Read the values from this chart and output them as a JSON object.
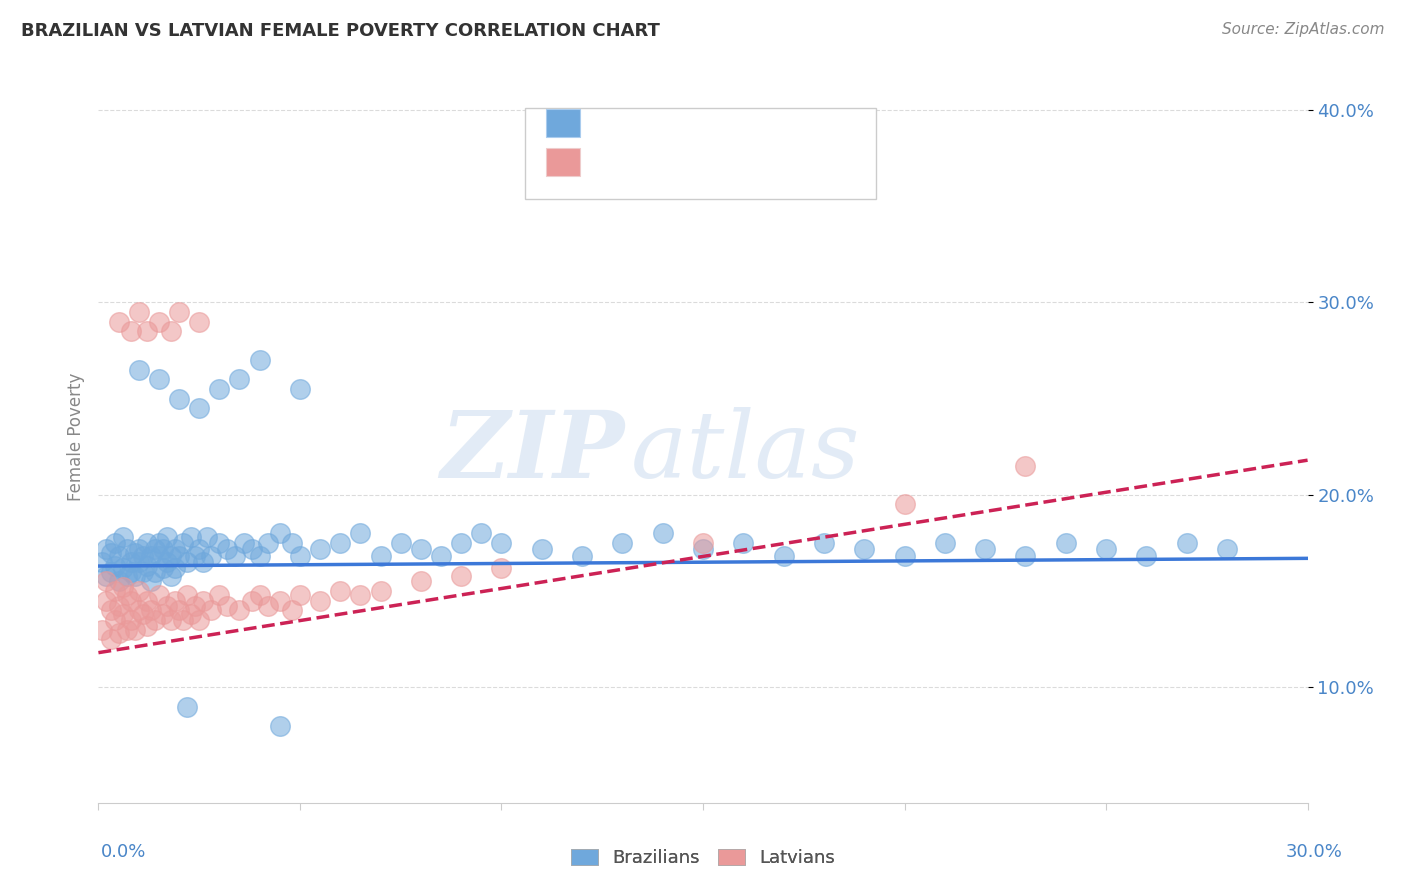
{
  "title": "BRAZILIAN VS LATVIAN FEMALE POVERTY CORRELATION CHART",
  "source": "Source: ZipAtlas.com",
  "ylabel": "Female Poverty",
  "xlim": [
    0.0,
    0.3
  ],
  "ylim": [
    0.04,
    0.42
  ],
  "yticks": [
    0.1,
    0.2,
    0.3,
    0.4
  ],
  "ytick_labels": [
    "10.0%",
    "20.0%",
    "30.0%",
    "40.0%"
  ],
  "xtick_positions": [
    0.0,
    0.05,
    0.1,
    0.15,
    0.2,
    0.25,
    0.3
  ],
  "blue_color": "#6fa8dc",
  "pink_color": "#ea9999",
  "blue_line_color": "#3c78d8",
  "pink_line_color": "#cc2255",
  "blue_line_style": "-",
  "pink_line_style": "--",
  "brazilian_x": [
    0.001,
    0.002,
    0.002,
    0.003,
    0.003,
    0.004,
    0.004,
    0.005,
    0.005,
    0.006,
    0.006,
    0.007,
    0.007,
    0.008,
    0.008,
    0.009,
    0.009,
    0.01,
    0.01,
    0.011,
    0.011,
    0.012,
    0.012,
    0.013,
    0.013,
    0.014,
    0.014,
    0.015,
    0.015,
    0.016,
    0.016,
    0.017,
    0.017,
    0.018,
    0.018,
    0.019,
    0.019,
    0.02,
    0.021,
    0.022,
    0.023,
    0.024,
    0.025,
    0.026,
    0.027,
    0.028,
    0.03,
    0.032,
    0.034,
    0.036,
    0.038,
    0.04,
    0.042,
    0.045,
    0.048,
    0.05,
    0.055,
    0.06,
    0.065,
    0.07,
    0.075,
    0.08,
    0.085,
    0.09,
    0.095,
    0.1,
    0.11,
    0.12,
    0.13,
    0.14,
    0.15,
    0.16,
    0.17,
    0.18,
    0.19,
    0.2,
    0.21,
    0.22,
    0.23,
    0.24,
    0.25,
    0.26,
    0.27,
    0.28,
    0.03,
    0.04,
    0.05,
    0.035,
    0.025,
    0.015,
    0.01,
    0.02,
    0.045,
    0.022
  ],
  "brazilian_y": [
    0.165,
    0.158,
    0.172,
    0.16,
    0.17,
    0.175,
    0.163,
    0.155,
    0.168,
    0.162,
    0.178,
    0.158,
    0.172,
    0.16,
    0.165,
    0.17,
    0.158,
    0.165,
    0.172,
    0.168,
    0.16,
    0.175,
    0.163,
    0.168,
    0.155,
    0.172,
    0.16,
    0.168,
    0.175,
    0.162,
    0.172,
    0.165,
    0.178,
    0.168,
    0.158,
    0.172,
    0.162,
    0.168,
    0.175,
    0.165,
    0.178,
    0.168,
    0.172,
    0.165,
    0.178,
    0.168,
    0.175,
    0.172,
    0.168,
    0.175,
    0.172,
    0.168,
    0.175,
    0.18,
    0.175,
    0.168,
    0.172,
    0.175,
    0.18,
    0.168,
    0.175,
    0.172,
    0.168,
    0.175,
    0.18,
    0.175,
    0.172,
    0.168,
    0.175,
    0.18,
    0.172,
    0.175,
    0.168,
    0.175,
    0.172,
    0.168,
    0.175,
    0.172,
    0.168,
    0.175,
    0.172,
    0.168,
    0.175,
    0.172,
    0.255,
    0.27,
    0.255,
    0.26,
    0.245,
    0.26,
    0.265,
    0.25,
    0.08,
    0.09
  ],
  "latvian_x": [
    0.001,
    0.002,
    0.002,
    0.003,
    0.003,
    0.004,
    0.004,
    0.005,
    0.005,
    0.006,
    0.006,
    0.007,
    0.007,
    0.008,
    0.008,
    0.009,
    0.01,
    0.01,
    0.011,
    0.012,
    0.012,
    0.013,
    0.014,
    0.015,
    0.016,
    0.017,
    0.018,
    0.019,
    0.02,
    0.021,
    0.022,
    0.023,
    0.024,
    0.025,
    0.026,
    0.028,
    0.03,
    0.032,
    0.035,
    0.038,
    0.04,
    0.042,
    0.045,
    0.048,
    0.05,
    0.055,
    0.06,
    0.065,
    0.07,
    0.08,
    0.09,
    0.1,
    0.15,
    0.2,
    0.23,
    0.005,
    0.008,
    0.01,
    0.012,
    0.015,
    0.018,
    0.02,
    0.025
  ],
  "latvian_y": [
    0.13,
    0.145,
    0.155,
    0.125,
    0.14,
    0.135,
    0.15,
    0.128,
    0.142,
    0.138,
    0.152,
    0.13,
    0.148,
    0.135,
    0.145,
    0.13,
    0.14,
    0.15,
    0.138,
    0.132,
    0.145,
    0.14,
    0.135,
    0.148,
    0.138,
    0.142,
    0.135,
    0.145,
    0.14,
    0.135,
    0.148,
    0.138,
    0.142,
    0.135,
    0.145,
    0.14,
    0.148,
    0.142,
    0.14,
    0.145,
    0.148,
    0.142,
    0.145,
    0.14,
    0.148,
    0.145,
    0.15,
    0.148,
    0.15,
    0.155,
    0.158,
    0.162,
    0.175,
    0.195,
    0.215,
    0.29,
    0.285,
    0.295,
    0.285,
    0.29,
    0.285,
    0.295,
    0.29
  ],
  "blue_trend_x": [
    0.0,
    0.3
  ],
  "blue_trend_y": [
    0.163,
    0.167
  ],
  "pink_trend_x": [
    0.0,
    0.3
  ],
  "pink_trend_y": [
    0.118,
    0.218
  ]
}
